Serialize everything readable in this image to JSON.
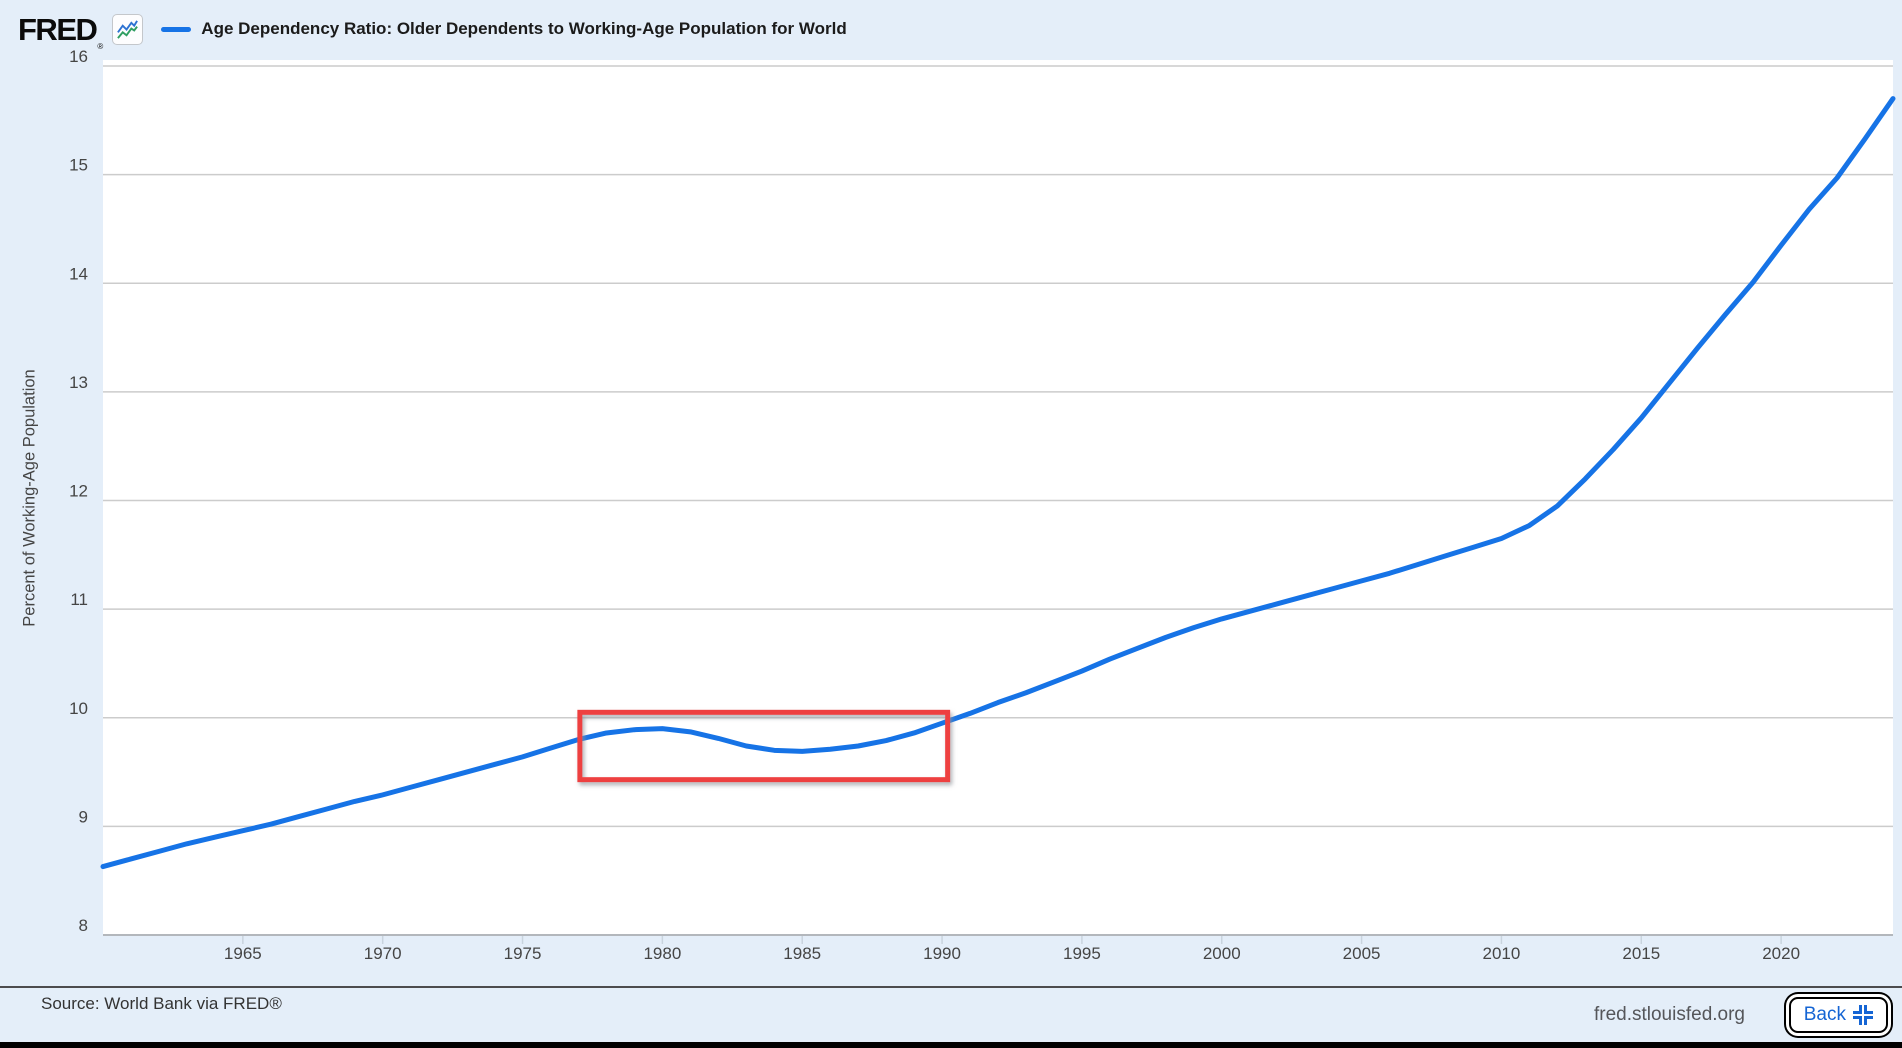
{
  "header": {
    "logo": "FRED",
    "logo_reg": "®",
    "title": "Age Dependency Ratio: Older Dependents to Working-Age Population for World"
  },
  "chart_data": {
    "type": "line",
    "title": "Age Dependency Ratio: Older Dependents to Working-Age Population for World",
    "ylabel": "Percent of Working-Age Population",
    "xlabel": "",
    "grid": "horizontal",
    "legend_position": "top-left",
    "xlim": [
      1960,
      2024
    ],
    "ylim": [
      8,
      16
    ],
    "yticks": [
      8,
      9,
      10,
      11,
      12,
      13,
      14,
      15,
      16
    ],
    "xticks": [
      1965,
      1970,
      1975,
      1980,
      1985,
      1990,
      1995,
      2000,
      2005,
      2010,
      2015,
      2020
    ],
    "line_color": "#1673e6",
    "gridline_color": "#cccccc",
    "axis_line_color": "#b3b7bc",
    "tick_label_color": "#454545",
    "x": [
      1960,
      1961,
      1962,
      1963,
      1964,
      1965,
      1966,
      1967,
      1968,
      1969,
      1970,
      1971,
      1972,
      1973,
      1974,
      1975,
      1976,
      1977,
      1978,
      1979,
      1980,
      1981,
      1982,
      1983,
      1984,
      1985,
      1986,
      1987,
      1988,
      1989,
      1990,
      1991,
      1992,
      1993,
      1994,
      1995,
      1996,
      1997,
      1998,
      1999,
      2000,
      2001,
      2002,
      2003,
      2004,
      2005,
      2006,
      2007,
      2008,
      2009,
      2010,
      2011,
      2012,
      2013,
      2014,
      2015,
      2016,
      2017,
      2018,
      2019,
      2020,
      2021,
      2022,
      2023,
      2024
    ],
    "values": [
      8.63,
      8.7,
      8.77,
      8.84,
      8.9,
      8.96,
      9.02,
      9.09,
      9.16,
      9.23,
      9.29,
      9.36,
      9.43,
      9.5,
      9.57,
      9.64,
      9.72,
      9.8,
      9.86,
      9.89,
      9.9,
      9.87,
      9.81,
      9.74,
      9.7,
      9.69,
      9.71,
      9.74,
      9.79,
      9.86,
      9.95,
      10.04,
      10.14,
      10.23,
      10.33,
      10.43,
      10.54,
      10.64,
      10.74,
      10.83,
      10.91,
      10.98,
      11.05,
      11.12,
      11.19,
      11.26,
      11.33,
      11.41,
      11.49,
      11.57,
      11.65,
      11.77,
      11.95,
      12.2,
      12.47,
      12.76,
      13.08,
      13.4,
      13.71,
      14.01,
      14.35,
      14.68,
      14.97,
      15.33,
      15.7
    ],
    "annotation": {
      "type": "rect",
      "color": "#ee4141",
      "x_from": 1977.05,
      "x_to": 1990.2,
      "y_from": 9.43,
      "y_to": 10.05
    }
  },
  "footer": {
    "source": "Source: World Bank via FRED®",
    "url": "fred.stlouisfed.org",
    "back_label": "Back"
  }
}
